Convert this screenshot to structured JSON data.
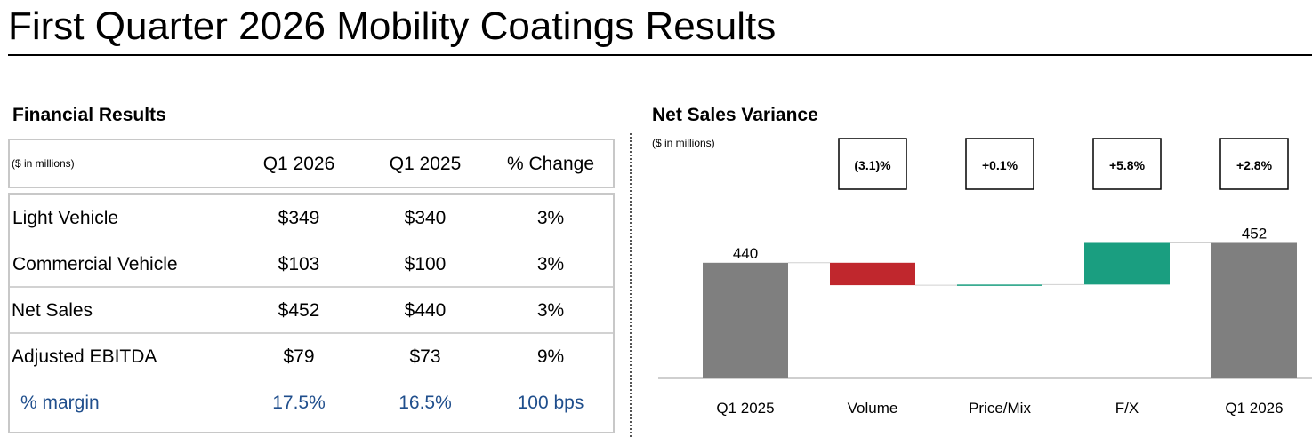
{
  "page": {
    "title": "First Quarter 2026 Mobility Coatings Results"
  },
  "financial": {
    "heading": "Financial Results",
    "units": "($ in millions)",
    "columns": [
      "Q1 2026",
      "Q1 2025",
      "% Change"
    ],
    "rows": [
      {
        "label": "Light Vehicle",
        "q1_2026": "$349",
        "q1_2025": "$340",
        "change": "3%"
      },
      {
        "label": "Commercial Vehicle",
        "q1_2026": "$103",
        "q1_2025": "$100",
        "change": "3%"
      },
      {
        "label": "Net Sales",
        "q1_2026": "$452",
        "q1_2025": "$440",
        "change": "3%"
      },
      {
        "label": "Adjusted EBITDA",
        "q1_2026": "$79",
        "q1_2025": "$73",
        "change": "9%"
      },
      {
        "label": "% margin",
        "q1_2026": "17.5%",
        "q1_2025": "16.5%",
        "change": "100 bps"
      }
    ]
  },
  "variance": {
    "heading": "Net Sales Variance",
    "units": "($ in millions)"
  },
  "chart_data": {
    "type": "bar",
    "subtype": "waterfall",
    "title": "Net Sales Variance",
    "subtitle": "($ in millions)",
    "categories": [
      "Q1 2025",
      "Volume",
      "Price/Mix",
      "F/X",
      "Q1 2026"
    ],
    "start": 440,
    "end": 452,
    "total_labels": [
      "440",
      "452"
    ],
    "steps": [
      {
        "category": "Volume",
        "value": -13.6,
        "pct_label": "(3.1)%",
        "color": "#c0272d"
      },
      {
        "category": "Price/Mix",
        "value": 0.4,
        "pct_label": "+0.1%",
        "color": "#1a9e80"
      },
      {
        "category": "F/X",
        "value": 25.2,
        "pct_label": "+5.8%",
        "color": "#1a9e80"
      }
    ],
    "total_pct_label": "+2.8%",
    "colors": {
      "total": "#7f7f7f",
      "negative": "#c0272d",
      "positive": "#1a9e80"
    },
    "grid": false
  }
}
